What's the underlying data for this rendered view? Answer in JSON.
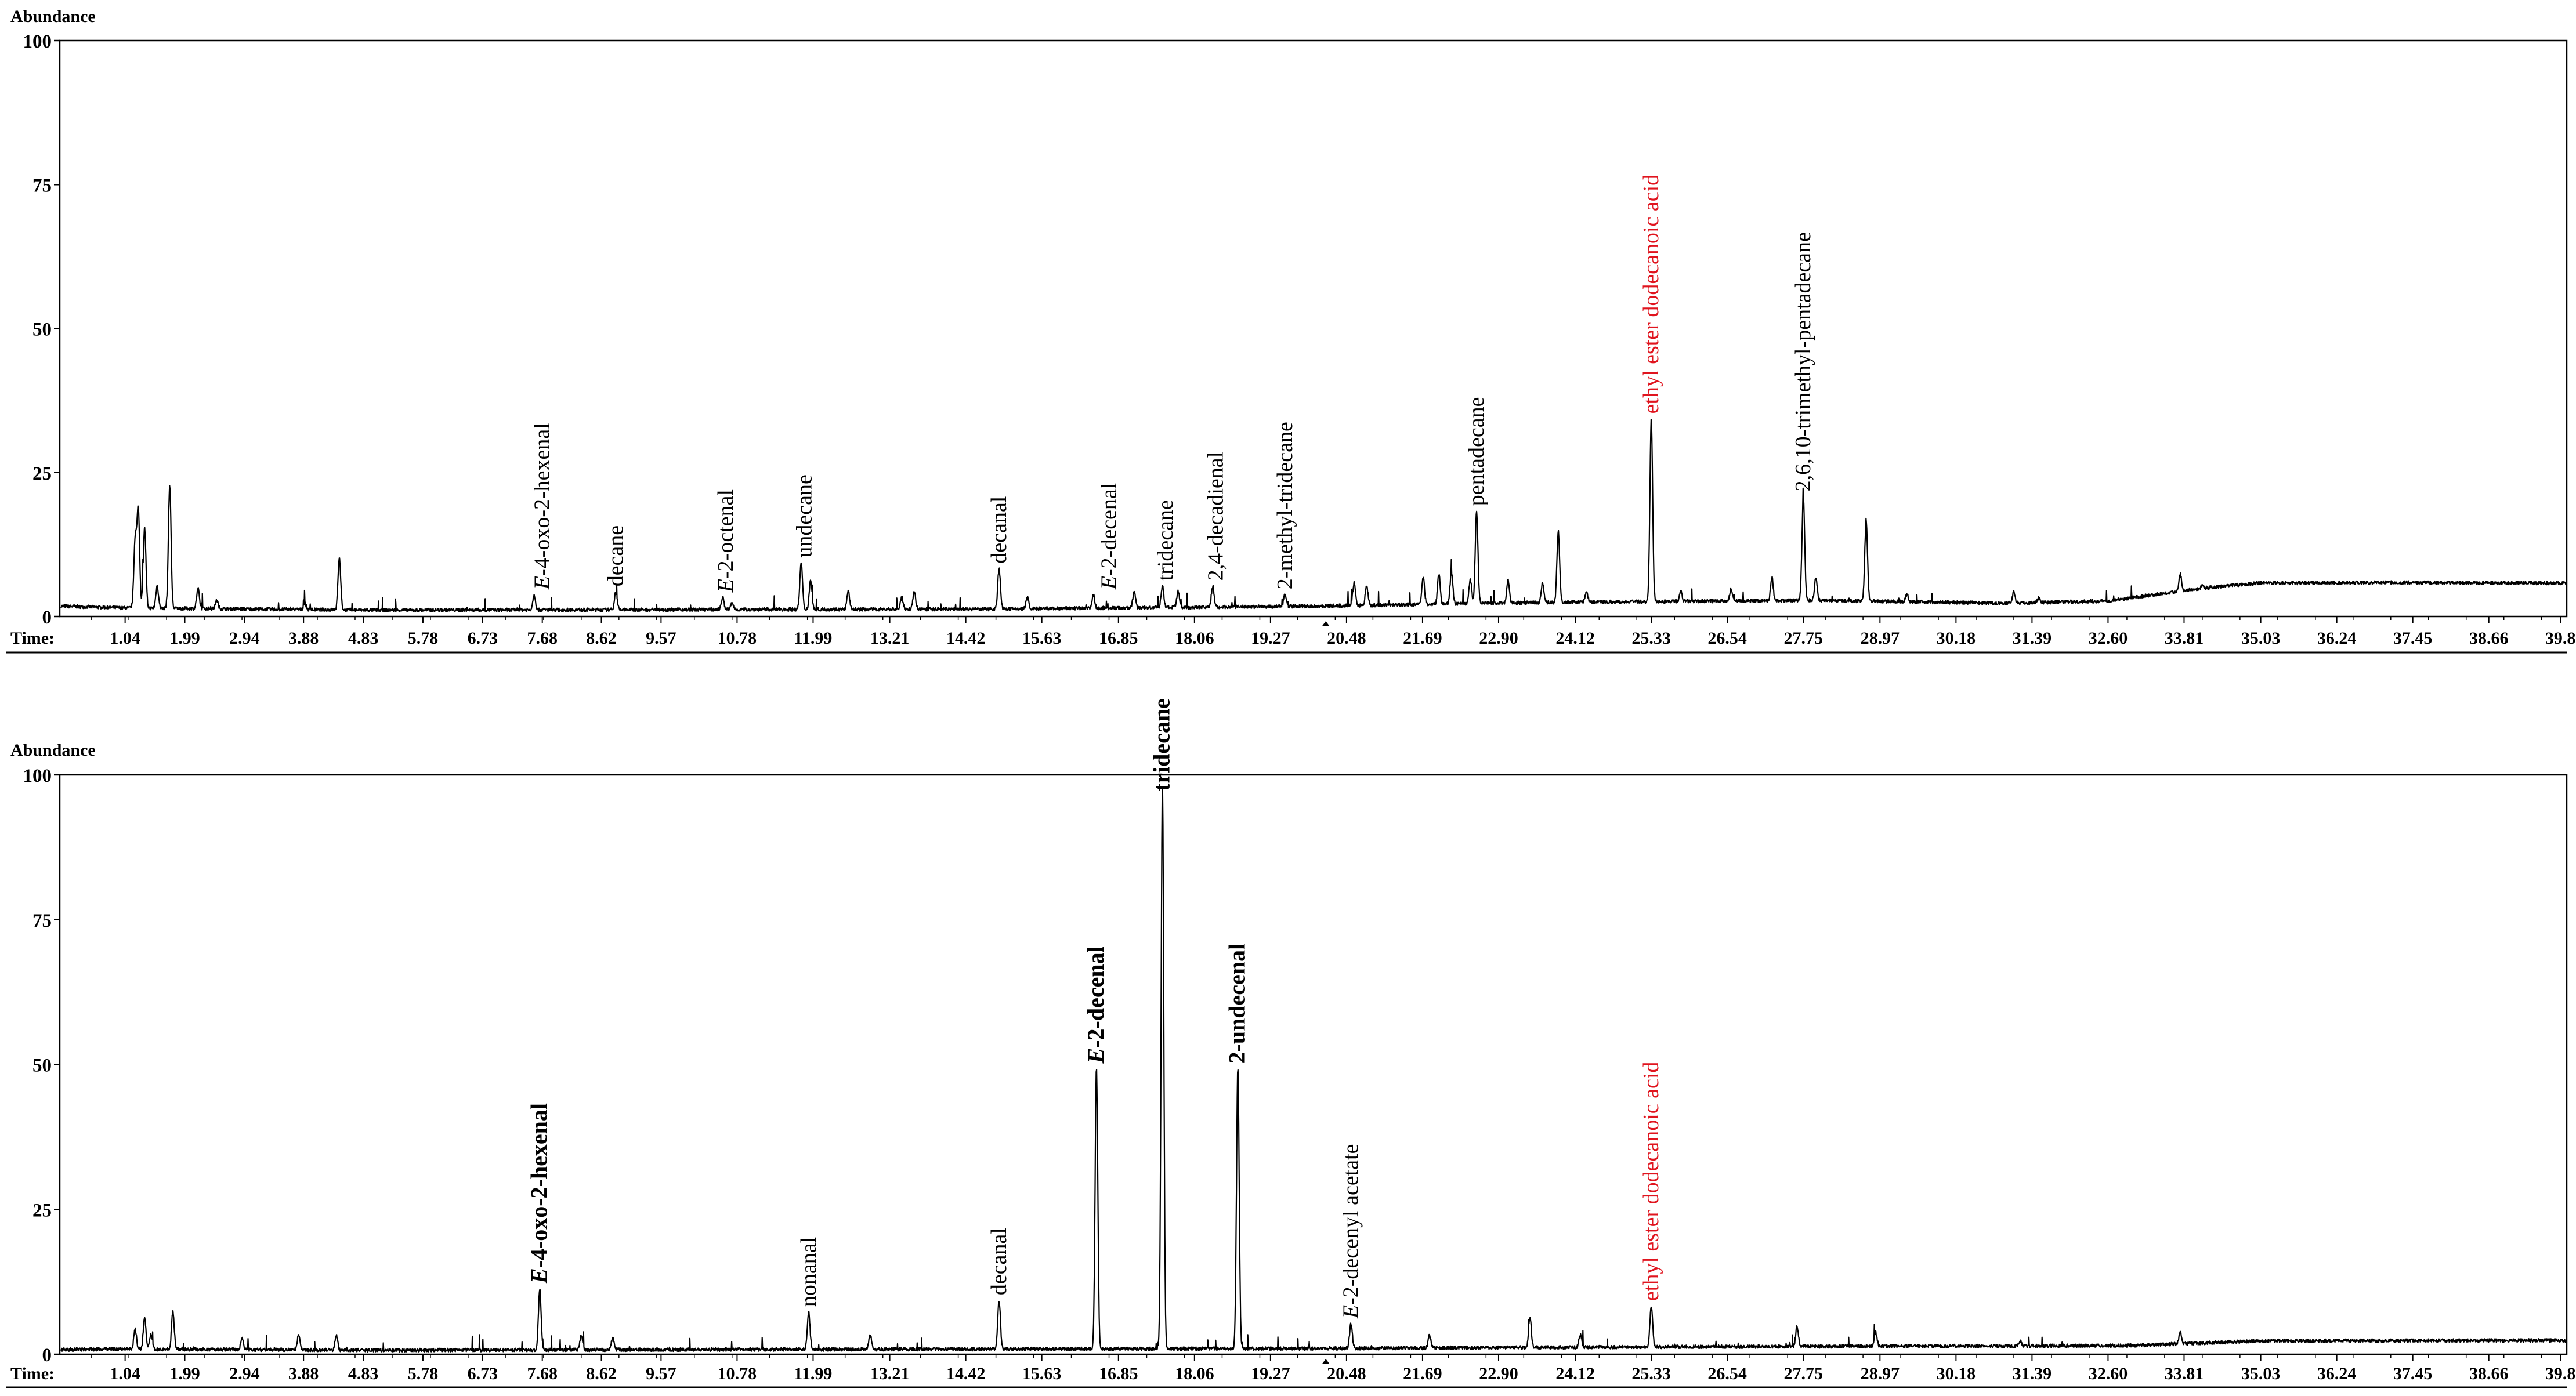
{
  "chart_data": [
    {
      "type": "line",
      "ylabel": "Abundance",
      "xlabel": "Time:",
      "ylim": [
        0,
        100
      ],
      "xlim": [
        0,
        39.9
      ],
      "y_ticks": [
        "0",
        "25",
        "50",
        "75",
        "100"
      ],
      "x_ticks": [
        "1.04",
        "1.99",
        "2.94",
        "3.88",
        "4.83",
        "5.78",
        "6.73",
        "7.68",
        "8.62",
        "9.57",
        "10.78",
        "11.99",
        "13.21",
        "14.42",
        "15.63",
        "16.85",
        "18.06",
        "19.27",
        "20.48",
        "21.69",
        "22.90",
        "24.12",
        "25.33",
        "26.54",
        "27.75",
        "28.97",
        "30.18",
        "31.39",
        "32.60",
        "33.81",
        "35.03",
        "36.24",
        "37.45",
        "38.66",
        "39.8"
      ],
      "baseline": [
        [
          0,
          1.5
        ],
        [
          1,
          1.2
        ],
        [
          5,
          0.8
        ],
        [
          10,
          0.9
        ],
        [
          15,
          1.0
        ],
        [
          20,
          1.5
        ],
        [
          24,
          2.2
        ],
        [
          28,
          2.5
        ],
        [
          31,
          2.0
        ],
        [
          32.6,
          2.4
        ],
        [
          34,
          4.5
        ],
        [
          35,
          5.5
        ],
        [
          37,
          5.6
        ],
        [
          39.9,
          5.5
        ]
      ],
      "peaks": [
        [
          1.2,
          13
        ],
        [
          1.25,
          18
        ],
        [
          1.35,
          15
        ],
        [
          1.55,
          5
        ],
        [
          1.75,
          22.5
        ],
        [
          2.2,
          4.5
        ],
        [
          2.5,
          2.5
        ],
        [
          3.9,
          2
        ],
        [
          4.45,
          10
        ],
        [
          7.55,
          3.5
        ],
        [
          8.85,
          4
        ],
        [
          10.55,
          3
        ],
        [
          10.7,
          2
        ],
        [
          11.8,
          9
        ],
        [
          11.95,
          6
        ],
        [
          12.55,
          4
        ],
        [
          13.4,
          3
        ],
        [
          13.6,
          4
        ],
        [
          14.95,
          8
        ],
        [
          15.4,
          3
        ],
        [
          16.45,
          3.5
        ],
        [
          17.1,
          4
        ],
        [
          17.55,
          5
        ],
        [
          17.8,
          4
        ],
        [
          18.35,
          5
        ],
        [
          19.5,
          3.5
        ],
        [
          20.6,
          5.5
        ],
        [
          20.8,
          5
        ],
        [
          21.7,
          6.5
        ],
        [
          21.95,
          7
        ],
        [
          22.15,
          7.5
        ],
        [
          22.45,
          6
        ],
        [
          22.55,
          18
        ],
        [
          23.05,
          6
        ],
        [
          23.6,
          5.5
        ],
        [
          23.85,
          14.5
        ],
        [
          24.3,
          4
        ],
        [
          25.33,
          34
        ],
        [
          25.8,
          4
        ],
        [
          26.6,
          4.5
        ],
        [
          27.25,
          6.5
        ],
        [
          27.75,
          20.5
        ],
        [
          27.95,
          6.5
        ],
        [
          28.75,
          16.5
        ],
        [
          29.4,
          3.5
        ],
        [
          31.1,
          4
        ],
        [
          31.5,
          3
        ],
        [
          33.75,
          7
        ],
        [
          34.1,
          5
        ]
      ],
      "annotations": [
        {
          "prefix": "E",
          "rest": "-4-oxo-2-hexenal",
          "x": 7.68,
          "color": "#000000",
          "bold": false
        },
        {
          "prefix": "",
          "rest": "decane",
          "x": 8.85,
          "color": "#000000",
          "bold": false
        },
        {
          "prefix": "E",
          "rest": "-2-octenal",
          "x": 10.6,
          "color": "#000000",
          "bold": false
        },
        {
          "prefix": "",
          "rest": "undecane",
          "x": 11.85,
          "color": "#000000",
          "bold": false
        },
        {
          "prefix": "",
          "rest": "decanal",
          "x": 14.95,
          "color": "#000000",
          "bold": false
        },
        {
          "prefix": "E",
          "rest": "-2-decenal",
          "x": 16.7,
          "color": "#000000",
          "bold": false
        },
        {
          "prefix": "",
          "rest": "tridecane",
          "x": 17.6,
          "color": "#000000",
          "bold": false
        },
        {
          "prefix": "",
          "rest": "2,4-decadienal",
          "x": 18.4,
          "color": "#000000",
          "bold": false
        },
        {
          "prefix": "",
          "rest": "2-methyl-tridecane",
          "x": 19.5,
          "color": "#000000",
          "bold": false
        },
        {
          "prefix": "",
          "rest": "pentadecane",
          "x": 22.55,
          "color": "#000000",
          "bold": false
        },
        {
          "prefix": "",
          "rest": "ethyl ester dodecanoic acid",
          "x": 25.33,
          "color": "#e0141e",
          "bold": false
        },
        {
          "prefix": "",
          "rest": "2,6,10-trimethyl-pentadecane",
          "x": 27.75,
          "color": "#000000",
          "bold": false
        }
      ]
    },
    {
      "type": "line",
      "ylabel": "Abundance",
      "xlabel": "Time:",
      "ylim": [
        0,
        100
      ],
      "xlim": [
        0,
        39.9
      ],
      "y_ticks": [
        "0",
        "25",
        "50",
        "75",
        "100"
      ],
      "x_ticks": [
        "1.04",
        "1.99",
        "2.94",
        "3.88",
        "4.83",
        "5.78",
        "6.73",
        "7.68",
        "8.62",
        "9.57",
        "10.78",
        "11.99",
        "13.21",
        "14.42",
        "15.63",
        "16.85",
        "18.06",
        "19.27",
        "20.48",
        "21.69",
        "22.90",
        "24.12",
        "25.33",
        "26.54",
        "27.75",
        "28.97",
        "30.18",
        "31.39",
        "32.60",
        "33.81",
        "35.03",
        "36.24",
        "37.45",
        "38.66",
        "39.8"
      ],
      "baseline": [
        [
          0,
          0.5
        ],
        [
          1,
          0.6
        ],
        [
          5,
          0.4
        ],
        [
          10,
          0.5
        ],
        [
          20,
          0.7
        ],
        [
          26,
          1.0
        ],
        [
          33,
          1.2
        ],
        [
          35,
          2.0
        ],
        [
          39.9,
          2.1
        ]
      ],
      "peaks": [
        [
          1.2,
          4
        ],
        [
          1.35,
          6
        ],
        [
          1.45,
          3
        ],
        [
          1.8,
          7
        ],
        [
          2.9,
          2.5
        ],
        [
          3.8,
          3
        ],
        [
          4.4,
          3
        ],
        [
          7.64,
          11
        ],
        [
          8.3,
          3
        ],
        [
          8.8,
          2.5
        ],
        [
          11.92,
          7
        ],
        [
          12.9,
          3
        ],
        [
          14.95,
          9
        ],
        [
          16.5,
          49
        ],
        [
          17.55,
          98
        ],
        [
          18.75,
          49
        ],
        [
          20.55,
          5
        ],
        [
          21.8,
          3
        ],
        [
          23.4,
          6
        ],
        [
          24.2,
          3
        ],
        [
          25.33,
          8
        ],
        [
          27.65,
          4.5
        ],
        [
          28.9,
          3.5
        ],
        [
          31.2,
          2
        ],
        [
          33.75,
          3.5
        ]
      ],
      "annotations": [
        {
          "prefix": "E",
          "rest": "-4-oxo-2-hexenal",
          "x": 7.64,
          "color": "#000000",
          "bold": true
        },
        {
          "prefix": "",
          "rest": "nonanal",
          "x": 11.92,
          "color": "#000000",
          "bold": false
        },
        {
          "prefix": "",
          "rest": "decanal",
          "x": 14.95,
          "color": "#000000",
          "bold": false
        },
        {
          "prefix": "E",
          "rest": "-2-decenal",
          "x": 16.5,
          "color": "#000000",
          "bold": true
        },
        {
          "prefix": "",
          "rest": "tridecane",
          "x": 17.55,
          "color": "#000000",
          "bold": true
        },
        {
          "prefix": "",
          "rest": "2-undecenal",
          "x": 18.75,
          "color": "#000000",
          "bold": true
        },
        {
          "prefix": "E",
          "rest": "-2-decenyl acetate",
          "x": 20.55,
          "color": "#000000",
          "bold": false
        },
        {
          "prefix": "",
          "rest": "ethyl ester dodecanoic acid",
          "x": 25.33,
          "color": "#e0141e",
          "bold": false
        }
      ]
    }
  ]
}
